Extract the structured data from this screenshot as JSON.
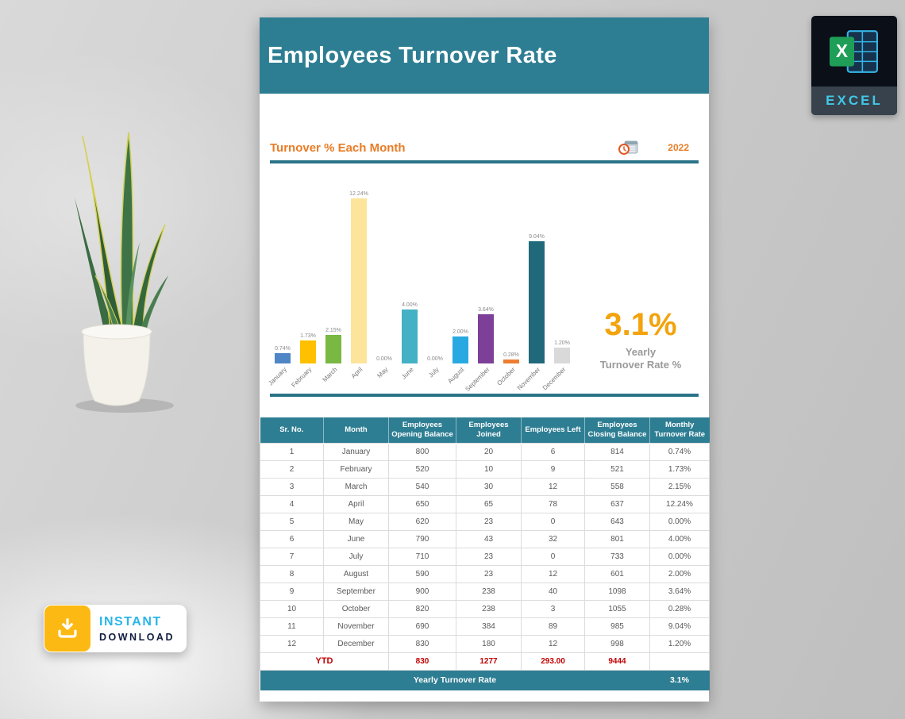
{
  "header": {
    "title": "Employees Turnover Rate"
  },
  "section": {
    "title": "Turnover % Each Month",
    "year": "2022"
  },
  "stat": {
    "value": "3.1%",
    "label_line1": "Yearly",
    "label_line2": "Turnover Rate %"
  },
  "chart_data": {
    "type": "bar",
    "title": "Turnover % Each Month",
    "categories": [
      "January",
      "February",
      "March",
      "April",
      "May",
      "June",
      "July",
      "August",
      "September",
      "October",
      "November",
      "December"
    ],
    "values": [
      0.74,
      1.73,
      2.15,
      12.24,
      0.0,
      4.0,
      0.0,
      2.0,
      3.64,
      0.28,
      9.04,
      1.2
    ],
    "value_labels": [
      "0.74%",
      "1.73%",
      "2.15%",
      "12.24%",
      "0.00%",
      "4.00%",
      "0.00%",
      "2.00%",
      "3.64%",
      "0.28%",
      "9.04%",
      "1.20%"
    ],
    "bar_colors": [
      "#4e86c6",
      "#ffc000",
      "#78b843",
      "#fce49a",
      "#cccccc",
      "#44b1c5",
      "#cccccc",
      "#29a9e1",
      "#7d3f98",
      "#ed7d31",
      "#20697a",
      "#d9d9d9"
    ],
    "xlabel": "",
    "ylabel": "",
    "ylim": [
      0,
      13
    ],
    "grid": false,
    "legend": null
  },
  "table": {
    "headers": [
      "Sr. No.",
      "Month",
      "Employees Opening Balance",
      "Employees Joined",
      "Employees Left",
      "Employees Closing Balance",
      "Monthly Turnover Rate"
    ],
    "rows": [
      [
        "1",
        "January",
        "800",
        "20",
        "6",
        "814",
        "0.74%"
      ],
      [
        "2",
        "February",
        "520",
        "10",
        "9",
        "521",
        "1.73%"
      ],
      [
        "3",
        "March",
        "540",
        "30",
        "12",
        "558",
        "2.15%"
      ],
      [
        "4",
        "April",
        "650",
        "65",
        "78",
        "637",
        "12.24%"
      ],
      [
        "5",
        "May",
        "620",
        "23",
        "0",
        "643",
        "0.00%"
      ],
      [
        "6",
        "June",
        "790",
        "43",
        "32",
        "801",
        "4.00%"
      ],
      [
        "7",
        "July",
        "710",
        "23",
        "0",
        "733",
        "0.00%"
      ],
      [
        "8",
        "August",
        "590",
        "23",
        "12",
        "601",
        "2.00%"
      ],
      [
        "9",
        "September",
        "900",
        "238",
        "40",
        "1098",
        "3.64%"
      ],
      [
        "10",
        "October",
        "820",
        "238",
        "3",
        "1055",
        "0.28%"
      ],
      [
        "11",
        "November",
        "690",
        "384",
        "89",
        "985",
        "9.04%"
      ],
      [
        "12",
        "December",
        "830",
        "180",
        "12",
        "998",
        "1.20%"
      ]
    ],
    "ytd": {
      "label": "YTD",
      "values": [
        "830",
        "1277",
        "293.00",
        "9444",
        ""
      ]
    },
    "footer": {
      "label": "Yearly Turnover Rate",
      "value": "3.1%"
    }
  },
  "badges": {
    "excel": "EXCEL",
    "instant": "INSTANT",
    "download": "DOWNLOAD"
  },
  "colors": {
    "teal": "#2e7e93",
    "accent_orange": "#e97c26",
    "stat_orange": "#f2a30d",
    "ytd_red": "#c00000"
  }
}
